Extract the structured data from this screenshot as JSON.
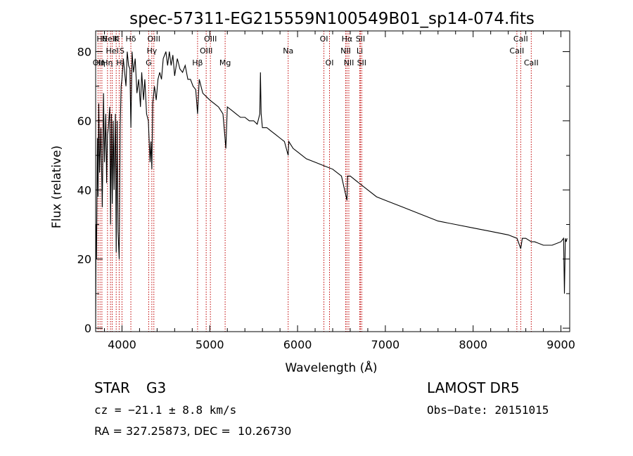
{
  "chart_data": {
    "type": "line",
    "title": "spec-57311-EG215559N100549B01_sp14-074.fits",
    "xlabel": "Wavelength (Å)",
    "ylabel": "Flux (relative)",
    "xlim": [
      3700,
      9100
    ],
    "ylim": [
      -1,
      86
    ],
    "xticks": [
      4000,
      5000,
      6000,
      7000,
      8000,
      9000
    ],
    "yticks": [
      0,
      20,
      40,
      60,
      80
    ],
    "line_color": "#000000",
    "marker_color": "#c00000",
    "series": [
      {
        "x": [
          3700,
          3705,
          3710,
          3720,
          3727,
          3735,
          3745,
          3760,
          3775,
          3790,
          3800,
          3815,
          3825,
          3835,
          3845,
          3860,
          3870,
          3880,
          3889,
          3900,
          3910,
          3925,
          3934,
          3945,
          3955,
          3968,
          3980,
          3990,
          4000,
          4015,
          4030,
          4045,
          4060,
          4075,
          4090,
          4101,
          4115,
          4130,
          4150,
          4170,
          4190,
          4210,
          4225,
          4245,
          4260,
          4280,
          4300,
          4320,
          4330,
          4340,
          4350,
          4370,
          4390,
          4410,
          4430,
          4450,
          4470,
          4500,
          4520,
          4540,
          4560,
          4580,
          4600,
          4630,
          4660,
          4690,
          4720,
          4750,
          4780,
          4810,
          4840,
          4861,
          4880,
          4920,
          4960,
          5000,
          5050,
          5100,
          5150,
          5170,
          5183,
          5200,
          5250,
          5300,
          5350,
          5400,
          5450,
          5500,
          5540,
          5570,
          5577,
          5585,
          5600,
          5650,
          5700,
          5750,
          5800,
          5850,
          5893,
          5900,
          5950,
          6000,
          6100,
          6200,
          6300,
          6400,
          6500,
          6563,
          6570,
          6600,
          6700,
          6800,
          6900,
          7000,
          7200,
          7400,
          7600,
          7800,
          8000,
          8200,
          8400,
          8500,
          8542,
          8560,
          8600,
          8662,
          8700,
          8800,
          8900,
          9000,
          9030,
          9040,
          9050,
          9060,
          9070
        ],
        "y": [
          0,
          30,
          20,
          55,
          38,
          65,
          45,
          58,
          35,
          68,
          48,
          62,
          42,
          56,
          58,
          64,
          30,
          62,
          36,
          60,
          40,
          62,
          22,
          60,
          28,
          20,
          58,
          70,
          72,
          78,
          74,
          70,
          80,
          76,
          75,
          58,
          80,
          74,
          78,
          68,
          72,
          64,
          74,
          66,
          72,
          62,
          60,
          48,
          54,
          46,
          65,
          70,
          66,
          72,
          74,
          72,
          78,
          80,
          76,
          80,
          76,
          79,
          73,
          78,
          75,
          74,
          76,
          72,
          72,
          70,
          69,
          62,
          72,
          68,
          67,
          66,
          65,
          64,
          62,
          56,
          52,
          64,
          63,
          62,
          61,
          61,
          60,
          60,
          59,
          62,
          74,
          62,
          58,
          58,
          57,
          56,
          55,
          54,
          50,
          54,
          52,
          51,
          49,
          48,
          47,
          46,
          44,
          37,
          44,
          44,
          42,
          40,
          38,
          37,
          35,
          33,
          31,
          30,
          29,
          28,
          27,
          26,
          23,
          26,
          26,
          25,
          25,
          24,
          24,
          25,
          26,
          10,
          26,
          25,
          26
        ]
      }
    ],
    "lines": [
      {
        "w": 3727,
        "label": "OII",
        "row": 0
      },
      {
        "w": 3750,
        "label": "Hη",
        "row": 0
      },
      {
        "w": 3771,
        "label": "Hθ",
        "row": 2
      },
      {
        "w": 3835,
        "label": "Hη",
        "row": 0
      },
      {
        "w": 3869,
        "label": "NeIII",
        "row": 2
      },
      {
        "w": 3889,
        "label": "HeI",
        "row": 1
      },
      {
        "w": 3934,
        "label": "K",
        "row": 2
      },
      {
        "w": 3968,
        "label": "H",
        "row": 0
      },
      {
        "w": 4000,
        "label": "S",
        "row": 1
      },
      {
        "w": 4101,
        "label": "Hδ",
        "row": 2
      },
      {
        "w": 4304,
        "label": "G",
        "row": 0
      },
      {
        "w": 4340,
        "label": "Hγ",
        "row": 1
      },
      {
        "w": 4363,
        "label": "OIII",
        "row": 2
      },
      {
        "w": 4861,
        "label": "Hβ",
        "row": 0
      },
      {
        "w": 4959,
        "label": "OIII",
        "row": 1
      },
      {
        "w": 5007,
        "label": "OIII",
        "row": 2
      },
      {
        "w": 5175,
        "label": "Mg",
        "row": 0
      },
      {
        "w": 5893,
        "label": "Na",
        "row": 1
      },
      {
        "w": 6300,
        "label": "OI",
        "row": 2
      },
      {
        "w": 6364,
        "label": "OI",
        "row": 0
      },
      {
        "w": 6548,
        "label": "NII",
        "row": 1
      },
      {
        "w": 6563,
        "label": "Hα",
        "row": 2
      },
      {
        "w": 6584,
        "label": "NII",
        "row": 0
      },
      {
        "w": 6708,
        "label": "Li",
        "row": 1
      },
      {
        "w": 6716,
        "label": "SII",
        "row": 2
      },
      {
        "w": 6731,
        "label": "SII",
        "row": 0
      },
      {
        "w": 8498,
        "label": "CaII",
        "row": 1
      },
      {
        "w": 8542,
        "label": "CaII",
        "row": 2
      },
      {
        "w": 8662,
        "label": "CaII",
        "row": 0
      }
    ],
    "grid": false
  },
  "info": {
    "class": "STAR",
    "subclass": "G3",
    "survey": "LAMOST DR5",
    "cz": "cz = −21.1 ± 8.8 km/s",
    "obs_date": "Obs−Date: 20151015",
    "radec": "RA = 327.25873, DEC =  10.26730"
  }
}
